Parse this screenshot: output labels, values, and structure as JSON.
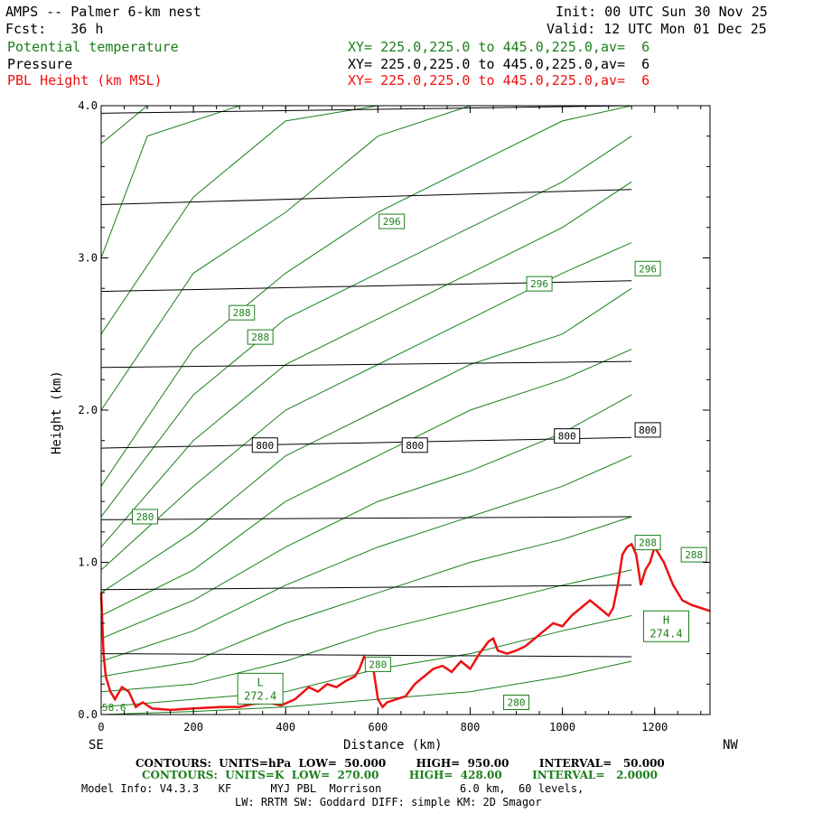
{
  "header": {
    "title": "AMPS -- Palmer 6-km nest",
    "fcst": "Fcst:   36 h",
    "init": "Init: 00 UTC Sun 30 Nov 25",
    "valid": "Valid: 12 UTC Mon 01 Dec 25"
  },
  "fields": [
    {
      "name": "Potential temperature",
      "spec": "XY= 225.0,225.0 to 445.0,225.0,av=  6",
      "color": "#1a7f1a"
    },
    {
      "name": "Pressure",
      "spec": "XY= 225.0,225.0 to 445.0,225.0,av=  6",
      "color": "#000000"
    },
    {
      "name": "PBL Height (km MSL)",
      "spec": "XY= 225.0,225.0 to 445.0,225.0,av=  6",
      "color": "#ee1111"
    }
  ],
  "footer": {
    "contours_p": "CONTOURS:  UNITS=hPa  LOW=  50.000        HIGH=  950.00        INTERVAL=   50.000",
    "contours_t": "CONTOURS:  UNITS=K  LOW=  270.00        HIGH=  428.00        INTERVAL=   2.0000",
    "model_info": "Model Info: V4.3.3   KF      MYJ PBL  Morrison            6.0 km,  60 levels,",
    "model_info2": "LW: RRTM SW: Goddard DIFF: simple KM: 2D Smagor"
  },
  "chart_data": {
    "type": "line",
    "xlabel": "Distance (km)",
    "ylabel": "Height (km)",
    "xlim": [
      0,
      1320
    ],
    "ylim": [
      0,
      4.0
    ],
    "x_ticks": [
      0,
      200,
      400,
      600,
      800,
      1000,
      1200
    ],
    "y_ticks": [
      "0.0",
      "1.0",
      "2.0",
      "3.0",
      "4.0"
    ],
    "left_end_label": "SE",
    "right_end_label": "NW",
    "series": [
      {
        "name": "PBL Height (km MSL)",
        "color": "#ee1111",
        "x": [
          0,
          5,
          10,
          20,
          30,
          45,
          60,
          75,
          90,
          110,
          150,
          200,
          260,
          300,
          330,
          360,
          390,
          420,
          450,
          470,
          490,
          510,
          530,
          550,
          560,
          570,
          580,
          590,
          600,
          610,
          620,
          640,
          660,
          680,
          700,
          720,
          740,
          760,
          780,
          800,
          820,
          840,
          850,
          860,
          880,
          900,
          920,
          940,
          960,
          980,
          1000,
          1020,
          1040,
          1060,
          1080,
          1100,
          1110,
          1120,
          1130,
          1140,
          1150,
          1160,
          1170,
          1180,
          1190,
          1200,
          1210,
          1220,
          1240,
          1260,
          1280,
          1300,
          1320
        ],
        "y": [
          0.8,
          0.4,
          0.25,
          0.15,
          0.1,
          0.18,
          0.15,
          0.05,
          0.08,
          0.04,
          0.03,
          0.04,
          0.05,
          0.05,
          0.07,
          0.08,
          0.06,
          0.1,
          0.18,
          0.15,
          0.2,
          0.18,
          0.22,
          0.25,
          0.3,
          0.38,
          0.35,
          0.3,
          0.1,
          0.05,
          0.08,
          0.1,
          0.12,
          0.2,
          0.25,
          0.3,
          0.32,
          0.28,
          0.35,
          0.3,
          0.4,
          0.48,
          0.5,
          0.42,
          0.4,
          0.42,
          0.45,
          0.5,
          0.55,
          0.6,
          0.58,
          0.65,
          0.7,
          0.75,
          0.7,
          0.65,
          0.7,
          0.85,
          1.05,
          1.1,
          1.12,
          1.05,
          0.85,
          0.95,
          1.0,
          1.1,
          1.05,
          1.0,
          0.85,
          0.75,
          0.72,
          0.7,
          0.68
        ]
      }
    ],
    "pressure_contours": [
      {
        "x": [
          0,
          1150
        ],
        "y": [
          3.95,
          4.0
        ]
      },
      {
        "x": [
          0,
          1150
        ],
        "y": [
          3.35,
          3.45
        ]
      },
      {
        "x": [
          0,
          1150
        ],
        "y": [
          2.78,
          2.85
        ]
      },
      {
        "x": [
          0,
          1150
        ],
        "y": [
          2.28,
          2.32
        ]
      },
      {
        "x": [
          0,
          1150
        ],
        "y": [
          1.75,
          1.82
        ]
      },
      {
        "x": [
          0,
          1150
        ],
        "y": [
          1.28,
          1.3
        ]
      },
      {
        "x": [
          0,
          1150
        ],
        "y": [
          0.82,
          0.85
        ]
      },
      {
        "x": [
          0,
          1150
        ],
        "y": [
          0.4,
          0.38
        ]
      }
    ],
    "theta_contours": [
      {
        "x": [
          0,
          100,
          400,
          700,
          1000,
          1150
        ],
        "y": [
          3.75,
          4.0,
          4.0,
          4.0,
          4.0,
          4.0
        ]
      },
      {
        "x": [
          0,
          100,
          300,
          500,
          700,
          900,
          1150
        ],
        "y": [
          3.0,
          3.8,
          4.0,
          4.0,
          4.0,
          4.0,
          4.0
        ]
      },
      {
        "x": [
          0,
          200,
          400,
          600,
          800,
          1000,
          1150
        ],
        "y": [
          2.5,
          3.4,
          3.9,
          4.0,
          4.0,
          4.0,
          4.0
        ]
      },
      {
        "x": [
          0,
          200,
          400,
          600,
          800,
          1000,
          1150
        ],
        "y": [
          2.0,
          2.9,
          3.3,
          3.8,
          4.0,
          4.0,
          4.0
        ]
      },
      {
        "x": [
          0,
          200,
          400,
          600,
          800,
          1000,
          1150
        ],
        "y": [
          1.5,
          2.4,
          2.9,
          3.3,
          3.6,
          3.9,
          4.0
        ]
      },
      {
        "x": [
          0,
          200,
          400,
          600,
          800,
          1000,
          1150
        ],
        "y": [
          1.3,
          2.1,
          2.6,
          2.9,
          3.2,
          3.5,
          3.8
        ]
      },
      {
        "x": [
          0,
          200,
          400,
          600,
          800,
          1000,
          1150
        ],
        "y": [
          1.1,
          1.8,
          2.3,
          2.6,
          2.9,
          3.2,
          3.5
        ]
      },
      {
        "x": [
          0,
          200,
          400,
          600,
          800,
          1000,
          1150
        ],
        "y": [
          0.95,
          1.5,
          2.0,
          2.3,
          2.6,
          2.9,
          3.1
        ]
      },
      {
        "x": [
          0,
          200,
          400,
          600,
          800,
          1000,
          1150
        ],
        "y": [
          0.8,
          1.2,
          1.7,
          2.0,
          2.3,
          2.5,
          2.8
        ]
      },
      {
        "x": [
          0,
          200,
          400,
          600,
          800,
          1000,
          1150
        ],
        "y": [
          0.65,
          0.95,
          1.4,
          1.7,
          2.0,
          2.2,
          2.4
        ]
      },
      {
        "x": [
          0,
          200,
          400,
          600,
          800,
          1000,
          1150
        ],
        "y": [
          0.5,
          0.75,
          1.1,
          1.4,
          1.6,
          1.85,
          2.1
        ]
      },
      {
        "x": [
          0,
          200,
          400,
          600,
          800,
          1000,
          1150
        ],
        "y": [
          0.35,
          0.55,
          0.85,
          1.1,
          1.3,
          1.5,
          1.7
        ]
      },
      {
        "x": [
          0,
          200,
          400,
          600,
          800,
          1000,
          1150
        ],
        "y": [
          0.25,
          0.35,
          0.6,
          0.8,
          1.0,
          1.15,
          1.3
        ]
      },
      {
        "x": [
          0,
          200,
          400,
          600,
          800,
          1000,
          1150
        ],
        "y": [
          0.15,
          0.2,
          0.35,
          0.55,
          0.7,
          0.85,
          0.95
        ]
      },
      {
        "x": [
          0,
          200,
          400,
          600,
          800,
          1000,
          1150
        ],
        "y": [
          0.05,
          0.1,
          0.15,
          0.3,
          0.4,
          0.55,
          0.65
        ]
      },
      {
        "x": [
          0,
          200,
          400,
          600,
          800,
          1000,
          1150
        ],
        "y": [
          0.0,
          0.02,
          0.05,
          0.1,
          0.15,
          0.25,
          0.35
        ]
      }
    ],
    "contour_labels": [
      {
        "text": "296",
        "x": 630,
        "y": 3.24,
        "color": "#1a7f1a"
      },
      {
        "text": "296",
        "x": 950,
        "y": 2.83,
        "color": "#1a7f1a"
      },
      {
        "text": "296",
        "x": 1185,
        "y": 2.93,
        "color": "#1a7f1a"
      },
      {
        "text": "288",
        "x": 305,
        "y": 2.64,
        "color": "#1a7f1a"
      },
      {
        "text": "288",
        "x": 345,
        "y": 2.48,
        "color": "#1a7f1a"
      },
      {
        "text": "800",
        "x": 355,
        "y": 1.77,
        "color": "#000000"
      },
      {
        "text": "800",
        "x": 680,
        "y": 1.77,
        "color": "#000000"
      },
      {
        "text": "800",
        "x": 1010,
        "y": 1.83,
        "color": "#000000"
      },
      {
        "text": "800",
        "x": 1185,
        "y": 1.87,
        "color": "#000000"
      },
      {
        "text": "280",
        "x": 95,
        "y": 1.3,
        "color": "#1a7f1a"
      },
      {
        "text": "288",
        "x": 1185,
        "y": 1.13,
        "color": "#1a7f1a"
      },
      {
        "text": "288",
        "x": 1285,
        "y": 1.05,
        "color": "#1a7f1a"
      },
      {
        "text": "280",
        "x": 600,
        "y": 0.33,
        "color": "#1a7f1a"
      },
      {
        "text": "280",
        "x": 900,
        "y": 0.08,
        "color": "#1a7f1a"
      }
    ],
    "extrema_labels": [
      {
        "text": "L",
        "sub": "272.4",
        "x": 345,
        "y": 0.17
      },
      {
        "text": "H",
        "sub": "274.4",
        "x": 1225,
        "y": 0.58
      }
    ],
    "corner_label": "58.6"
  }
}
